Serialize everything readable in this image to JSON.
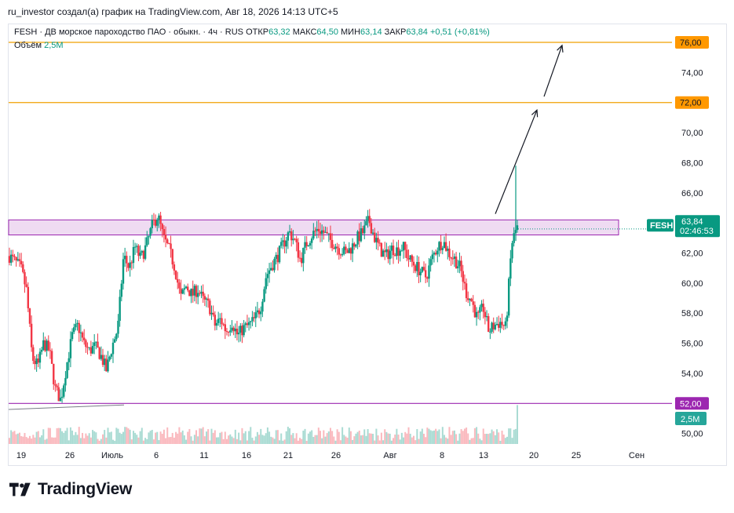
{
  "header": {
    "title": "ru_investor создал(а) график на TradingView.com, Авг 18, 2026 14:13 UTC+5"
  },
  "legend": {
    "symbol_line": "FESH · ДВ морское пароходство ПАО · обыкн. · 4ч · RUS",
    "open_label": "ОТКР",
    "open": "63,32",
    "high_label": "МАКС",
    "high": "64,50",
    "low_label": "МИН",
    "low": "63,14",
    "close_label": "ЗАКР",
    "close": "63,84",
    "change": "+0,51 (+0,81%)",
    "volume_label": "Объём",
    "volume": "2,5M"
  },
  "price_scale": {
    "ticks": [
      "76,00",
      "74,00",
      "72,00",
      "70,00",
      "68,00",
      "66,00",
      "64,00",
      "62,00",
      "60,00",
      "58,00",
      "56,00",
      "54,00",
      "52,00",
      "50,00"
    ],
    "current_symbol": "FESH",
    "current_price": "63,84",
    "countdown": "02:46:53",
    "volume_badge": "2,5M",
    "level_badges": [
      "76,00",
      "72,00",
      "52,00"
    ]
  },
  "time_axis": {
    "labels": [
      "19",
      "26",
      "Июль",
      "6",
      "11",
      "16",
      "21",
      "26",
      "Авг",
      "8",
      "13",
      "20",
      "25",
      "Сен"
    ]
  },
  "colors": {
    "up": "#089981",
    "down": "#f23645",
    "level_orange": "#f0a000",
    "level_purple": "#9c27b0",
    "zone_fill": "#e1bee7",
    "badge_orange": "#ff9800",
    "badge_purple": "#9c27b0"
  },
  "chart_data": {
    "type": "candlestick",
    "y_range": [
      49.2,
      77.2
    ],
    "levels": [
      76.0,
      72.0,
      52.0
    ],
    "zone": [
      63.2,
      64.2
    ],
    "arrow_targets": [
      72.0,
      76.0
    ],
    "price_path": [
      [
        0.0,
        61.8
      ],
      [
        0.02,
        61.0
      ],
      [
        0.03,
        59.5
      ],
      [
        0.04,
        55.0
      ],
      [
        0.05,
        54.5
      ],
      [
        0.06,
        56.0
      ],
      [
        0.07,
        55.5
      ],
      [
        0.08,
        53.0
      ],
      [
        0.09,
        52.2
      ],
      [
        0.1,
        54.5
      ],
      [
        0.11,
        56.5
      ],
      [
        0.12,
        57.2
      ],
      [
        0.13,
        56.0
      ],
      [
        0.14,
        55.5
      ],
      [
        0.15,
        55.8
      ],
      [
        0.16,
        55.2
      ],
      [
        0.17,
        54.2
      ],
      [
        0.18,
        55.8
      ],
      [
        0.19,
        57.0
      ],
      [
        0.2,
        61.8
      ],
      [
        0.21,
        61.0
      ],
      [
        0.22,
        62.4
      ],
      [
        0.23,
        61.6
      ],
      [
        0.24,
        62.5
      ],
      [
        0.25,
        63.8
      ],
      [
        0.26,
        64.5
      ],
      [
        0.27,
        63.0
      ],
      [
        0.28,
        62.2
      ],
      [
        0.29,
        61.0
      ],
      [
        0.3,
        59.0
      ],
      [
        0.31,
        59.8
      ],
      [
        0.32,
        59.2
      ],
      [
        0.33,
        59.6
      ],
      [
        0.34,
        58.8
      ],
      [
        0.35,
        58.5
      ],
      [
        0.36,
        57.2
      ],
      [
        0.37,
        57.6
      ],
      [
        0.38,
        56.8
      ],
      [
        0.39,
        57.4
      ],
      [
        0.4,
        56.5
      ],
      [
        0.41,
        57.0
      ],
      [
        0.42,
        57.2
      ],
      [
        0.43,
        57.6
      ],
      [
        0.44,
        58.4
      ],
      [
        0.45,
        60.5
      ],
      [
        0.46,
        61.2
      ],
      [
        0.47,
        61.8
      ],
      [
        0.48,
        62.6
      ],
      [
        0.49,
        63.4
      ],
      [
        0.5,
        62.8
      ],
      [
        0.51,
        61.5
      ],
      [
        0.52,
        62.6
      ],
      [
        0.53,
        63.2
      ],
      [
        0.54,
        63.6
      ],
      [
        0.55,
        63.4
      ],
      [
        0.56,
        62.9
      ],
      [
        0.57,
        62.6
      ],
      [
        0.58,
        62.2
      ],
      [
        0.59,
        62.0
      ],
      [
        0.6,
        62.4
      ],
      [
        0.61,
        63.0
      ],
      [
        0.62,
        63.4
      ],
      [
        0.63,
        64.2
      ],
      [
        0.64,
        63.0
      ],
      [
        0.65,
        62.2
      ],
      [
        0.66,
        61.8
      ],
      [
        0.67,
        62.3
      ],
      [
        0.68,
        62.2
      ],
      [
        0.69,
        62.4
      ],
      [
        0.7,
        61.6
      ],
      [
        0.71,
        61.2
      ],
      [
        0.72,
        60.8
      ],
      [
        0.73,
        60.4
      ],
      [
        0.74,
        61.6
      ],
      [
        0.75,
        62.4
      ],
      [
        0.76,
        62.8
      ],
      [
        0.77,
        62.0
      ],
      [
        0.78,
        61.6
      ],
      [
        0.79,
        61.0
      ],
      [
        0.8,
        59.4
      ],
      [
        0.81,
        58.8
      ],
      [
        0.82,
        57.6
      ],
      [
        0.83,
        58.4
      ],
      [
        0.84,
        56.8
      ],
      [
        0.85,
        57.2
      ],
      [
        0.86,
        57.4
      ],
      [
        0.87,
        57.0
      ],
      [
        0.88,
        62.6
      ],
      [
        0.89,
        63.84
      ]
    ]
  }
}
